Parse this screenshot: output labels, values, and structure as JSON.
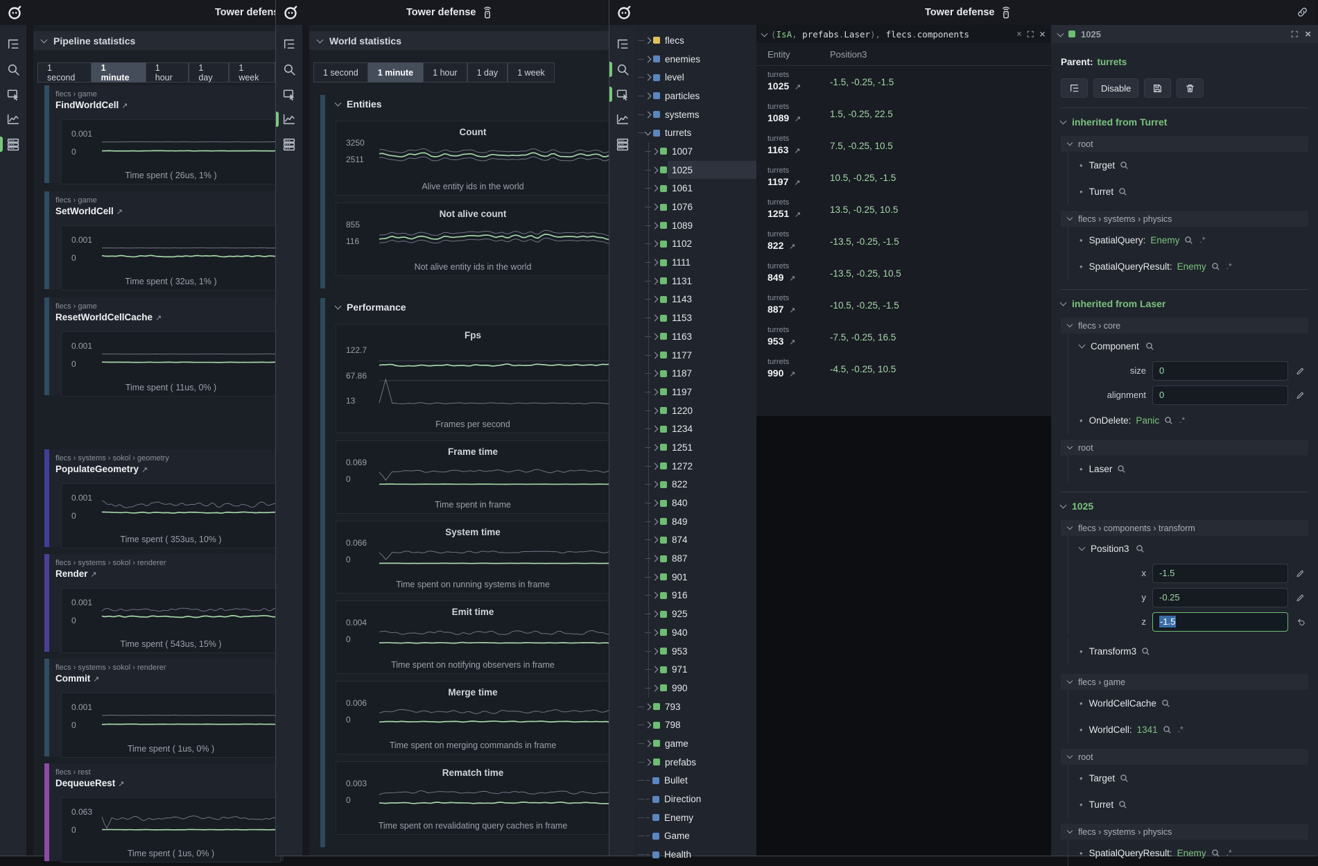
{
  "palette": {
    "green_line": "#a5d6a8",
    "gray_line": "#6f7684",
    "accent_teal": "#2f4d60",
    "accent_indigo": "#3e3f9b",
    "accent_purple": "#4c3f99",
    "accent_magenta": "#8d4aa8",
    "tree_yellow": "#dfc35a",
    "tree_blue": "#5b86c0",
    "tree_green": "#6dbd72"
  },
  "ui": {
    "title": "Tower defense",
    "time_buttons": [
      "1 second",
      "1 minute",
      "1 hour",
      "1 day",
      "1 week"
    ],
    "active_time": "1 minute"
  },
  "left_panel": {
    "title": "Pipeline statistics",
    "cards": [
      {
        "crumb": "flecs > game",
        "name": "FindWorldCell",
        "accent": "#2f4d60",
        "ymax": "0.001",
        "ymin": "0",
        "caption": "Time spent ( 26us, 1% )",
        "series": [
          {
            "c": "gray",
            "b": 0.4,
            "a": 0.004,
            "seed": 1
          },
          {
            "c": "green",
            "b": 0.64,
            "a": 0.006,
            "seed": 2
          }
        ]
      },
      {
        "crumb": "flecs > game",
        "name": "SetWorldCell",
        "accent": "#2f4d60",
        "ymax": "0.001",
        "ymin": "0",
        "caption": "Time spent ( 32us, 1% )",
        "series": [
          {
            "c": "gray",
            "b": 0.4,
            "a": 0.004,
            "seed": 3
          },
          {
            "c": "green",
            "b": 0.62,
            "a": 0.028,
            "seed": 4
          }
        ]
      },
      {
        "crumb": "flecs > game",
        "name": "ResetWorldCellCache",
        "accent": "#2f4d60",
        "ymax": "0.001",
        "ymin": "0",
        "caption": "Time spent ( 11us, 0% )",
        "series": [
          {
            "c": "gray",
            "b": 0.4,
            "a": 0.004,
            "seed": 5
          },
          {
            "c": "green",
            "b": 0.62,
            "a": 0.006,
            "seed": 6
          }
        ]
      },
      {
        "crumb": "flecs > systems > sokol > geometry",
        "name": "PopulateGeometry",
        "accent": "#3e3f9b",
        "ymax": "0.001",
        "ymin": "0",
        "caption": "Time spent ( 353us, 10% )",
        "series": [
          {
            "c": "gray",
            "b": 0.36,
            "a": 0.105,
            "seed": 7
          },
          {
            "c": "green",
            "b": 0.58,
            "a": 0.02,
            "seed": 8
          }
        ]
      },
      {
        "crumb": "flecs > systems > sokol > renderer",
        "name": "Render",
        "accent": "#4c3f99",
        "ymax": "0.001",
        "ymin": "0",
        "caption": "Time spent ( 543us, 15% )",
        "series": [
          {
            "c": "gray",
            "b": 0.38,
            "a": 0.06,
            "seed": 9
          },
          {
            "c": "green",
            "b": 0.56,
            "a": 0.03,
            "seed": 10
          }
        ]
      },
      {
        "crumb": "flecs > systems > sokol > renderer",
        "name": "Commit",
        "accent": "#2f4d60",
        "ymax": "0.001",
        "ymin": "0",
        "caption": "Time spent ( 1us, 0% )",
        "series": [
          {
            "c": "gray",
            "b": 0.4,
            "a": 0.004,
            "seed": 11
          },
          {
            "c": "green",
            "b": 0.64,
            "a": 0.006,
            "seed": 12
          }
        ]
      },
      {
        "crumb": "flecs > rest",
        "name": "DequeueRest",
        "accent": "#8d4aa8",
        "ymax": "0.063",
        "ymin": "0",
        "caption": "Time spent ( 1us, 0% )",
        "series": [
          {
            "c": "gray",
            "b": 0.36,
            "a": 0.075,
            "seed": 13,
            "sp": 0.62
          },
          {
            "c": "green",
            "b": 0.66,
            "a": 0.006,
            "seed": 14
          }
        ]
      }
    ]
  },
  "world_panel": {
    "title": "World statistics",
    "groups": [
      {
        "label": "Entities",
        "cards": [
          {
            "title": "Count",
            "labels": [
              "3250",
              "2511"
            ],
            "caption": "Alive entity ids in the world",
            "h": 106,
            "series": [
              {
                "c": "gray",
                "b": 0.36,
                "a": 0.07,
                "seed": 21
              },
              {
                "c": "gray",
                "b": 0.56,
                "a": 0.07,
                "seed": 21
              },
              {
                "c": "green",
                "b": 0.46,
                "a": 0.07,
                "seed": 21
              }
            ]
          },
          {
            "title": "Not alive count",
            "labels": [
              "855",
              "116"
            ],
            "caption": "Not alive entity ids in the world",
            "h": 104,
            "series": [
              {
                "c": "gray",
                "b": 0.38,
                "a": 0.08,
                "seed": 24
              },
              {
                "c": "gray",
                "b": 0.58,
                "a": 0.08,
                "seed": 24
              },
              {
                "c": "green",
                "b": 0.48,
                "a": 0.08,
                "seed": 24
              }
            ]
          }
        ]
      },
      {
        "label": "Performance",
        "cards": [
          {
            "title": "Fps",
            "labels": [
              "122.7",
              "67.86",
              "13"
            ],
            "caption": "Frames per second",
            "h": 156,
            "grid": [
              0.24,
              0.52
            ],
            "series": [
              {
                "c": "green",
                "b": 0.3,
                "a": 0.022,
                "seed": 31
              },
              {
                "c": "gray",
                "b": 0.84,
                "a": 0.015,
                "seed": 32,
                "sp": 0.5
              }
            ]
          },
          {
            "title": "Frame time",
            "labels": [
              "0.069",
              "0"
            ],
            "caption": "Time spent in frame",
            "h": 104,
            "series": [
              {
                "c": "gray",
                "b": 0.38,
                "a": 0.06,
                "seed": 33,
                "sp": 0.62
              },
              {
                "c": "green",
                "b": 0.72,
                "a": 0.004,
                "seed": 34
              }
            ]
          },
          {
            "title": "System time",
            "labels": [
              "0.066",
              "0"
            ],
            "caption": "Time spent on running systems in frame",
            "h": 103,
            "series": [
              {
                "c": "gray",
                "b": 0.4,
                "a": 0.055,
                "seed": 35,
                "sp": 0.6
              },
              {
                "c": "green",
                "b": 0.7,
                "a": 0.004,
                "seed": 36
              }
            ]
          },
          {
            "title": "Emit time",
            "labels": [
              "0.004",
              "0"
            ],
            "caption": "Time spent on notifying observers in frame",
            "h": 104,
            "series": [
              {
                "c": "gray",
                "b": 0.42,
                "a": 0.085,
                "seed": 37
              },
              {
                "c": "green",
                "b": 0.68,
                "a": 0.015,
                "seed": 38
              }
            ]
          },
          {
            "title": "Merge time",
            "labels": [
              "0.006",
              "0"
            ],
            "caption": "Time spent on merging commands in frame",
            "h": 104,
            "series": [
              {
                "c": "gray",
                "b": 0.38,
                "a": 0.075,
                "seed": 39
              },
              {
                "c": "green",
                "b": 0.64,
                "a": 0.02,
                "seed": 40
              }
            ]
          },
          {
            "title": "Rematch time",
            "labels": [
              "0.003",
              "0"
            ],
            "caption": "Time spent on revalidating query caches in frame",
            "h": 104,
            "series": [
              {
                "c": "gray",
                "b": 0.4,
                "a": 0.065,
                "seed": 41
              },
              {
                "c": "green",
                "b": 0.66,
                "a": 0.025,
                "seed": 42
              }
            ]
          }
        ]
      }
    ]
  },
  "tree": {
    "items": [
      {
        "label": "flecs",
        "color": "yellow",
        "depth": 0,
        "kind": "branch"
      },
      {
        "label": "enemies",
        "color": "blue",
        "depth": 0,
        "kind": "branch"
      },
      {
        "label": "level",
        "color": "blue",
        "depth": 0,
        "kind": "branch"
      },
      {
        "label": "particles",
        "color": "blue",
        "depth": 0,
        "kind": "branch"
      },
      {
        "label": "systems",
        "color": "blue",
        "depth": 0,
        "kind": "branch"
      },
      {
        "label": "turrets",
        "color": "blue",
        "depth": 0,
        "kind": "open"
      },
      {
        "label": "1007",
        "color": "green",
        "depth": 1,
        "kind": "branch"
      },
      {
        "label": "1025",
        "color": "green",
        "depth": 1,
        "kind": "branch",
        "selected": true
      },
      {
        "label": "1061",
        "color": "green",
        "depth": 1,
        "kind": "branch"
      },
      {
        "label": "1076",
        "color": "green",
        "depth": 1,
        "kind": "branch"
      },
      {
        "label": "1089",
        "color": "green",
        "depth": 1,
        "kind": "branch"
      },
      {
        "label": "1102",
        "color": "green",
        "depth": 1,
        "kind": "branch"
      },
      {
        "label": "1111",
        "color": "green",
        "depth": 1,
        "kind": "branch"
      },
      {
        "label": "1131",
        "color": "green",
        "depth": 1,
        "kind": "branch"
      },
      {
        "label": "1143",
        "color": "green",
        "depth": 1,
        "kind": "branch"
      },
      {
        "label": "1153",
        "color": "green",
        "depth": 1,
        "kind": "branch"
      },
      {
        "label": "1163",
        "color": "green",
        "depth": 1,
        "kind": "branch"
      },
      {
        "label": "1177",
        "color": "green",
        "depth": 1,
        "kind": "branch"
      },
      {
        "label": "1187",
        "color": "green",
        "depth": 1,
        "kind": "branch"
      },
      {
        "label": "1197",
        "color": "green",
        "depth": 1,
        "kind": "branch"
      },
      {
        "label": "1220",
        "color": "green",
        "depth": 1,
        "kind": "branch"
      },
      {
        "label": "1234",
        "color": "green",
        "depth": 1,
        "kind": "branch"
      },
      {
        "label": "1251",
        "color": "green",
        "depth": 1,
        "kind": "branch"
      },
      {
        "label": "1272",
        "color": "green",
        "depth": 1,
        "kind": "branch"
      },
      {
        "label": "822",
        "color": "green",
        "depth": 1,
        "kind": "branch"
      },
      {
        "label": "840",
        "color": "green",
        "depth": 1,
        "kind": "branch"
      },
      {
        "label": "849",
        "color": "green",
        "depth": 1,
        "kind": "branch"
      },
      {
        "label": "874",
        "color": "green",
        "depth": 1,
        "kind": "branch"
      },
      {
        "label": "887",
        "color": "green",
        "depth": 1,
        "kind": "branch"
      },
      {
        "label": "901",
        "color": "green",
        "depth": 1,
        "kind": "branch"
      },
      {
        "label": "916",
        "color": "green",
        "depth": 1,
        "kind": "branch"
      },
      {
        "label": "925",
        "color": "green",
        "depth": 1,
        "kind": "branch"
      },
      {
        "label": "940",
        "color": "green",
        "depth": 1,
        "kind": "branch"
      },
      {
        "label": "953",
        "color": "green",
        "depth": 1,
        "kind": "branch"
      },
      {
        "label": "971",
        "color": "green",
        "depth": 1,
        "kind": "branch"
      },
      {
        "label": "990",
        "color": "green",
        "depth": 1,
        "kind": "branch"
      },
      {
        "label": "793",
        "color": "green",
        "depth": 0,
        "kind": "branch"
      },
      {
        "label": "798",
        "color": "green",
        "depth": 0,
        "kind": "branch"
      },
      {
        "label": "game",
        "color": "green",
        "depth": 0,
        "kind": "branch"
      },
      {
        "label": "prefabs",
        "color": "green",
        "depth": 0,
        "kind": "branch"
      },
      {
        "label": "Bullet",
        "color": "blue",
        "depth": 0,
        "kind": "leaf"
      },
      {
        "label": "Direction",
        "color": "blue",
        "depth": 0,
        "kind": "leaf"
      },
      {
        "label": "Enemy",
        "color": "blue",
        "depth": 0,
        "kind": "leaf"
      },
      {
        "label": "Game",
        "color": "blue",
        "depth": 0,
        "kind": "leaf"
      },
      {
        "label": "Health",
        "color": "blue",
        "depth": 0,
        "kind": "leaf"
      }
    ]
  },
  "query": {
    "expr": [
      [
        "(",
        "p"
      ],
      [
        "IsA",
        "g"
      ],
      [
        ", ",
        "p"
      ],
      [
        "prefabs",
        "w"
      ],
      [
        ".",
        "p"
      ],
      [
        "Laser",
        "w"
      ],
      [
        "), ",
        "p"
      ],
      [
        "flecs",
        "w"
      ],
      [
        ".",
        "p"
      ],
      [
        "components",
        "w"
      ]
    ],
    "columns": [
      "Entity",
      "Position3"
    ],
    "rows": [
      {
        "group": "turrets",
        "id": "1025",
        "value": "-1.5, -0.25, -1.5"
      },
      {
        "group": "turrets",
        "id": "1089",
        "value": "1.5, -0.25, 22.5"
      },
      {
        "group": "turrets",
        "id": "1163",
        "value": "7.5, -0.25, 10.5"
      },
      {
        "group": "turrets",
        "id": "1197",
        "value": "10.5, -0.25, -1.5"
      },
      {
        "group": "turrets",
        "id": "1251",
        "value": "13.5, -0.25, 10.5"
      },
      {
        "group": "turrets",
        "id": "822",
        "value": "-13.5, -0.25, -1.5"
      },
      {
        "group": "turrets",
        "id": "849",
        "value": "-13.5, -0.25, 10.5"
      },
      {
        "group": "turrets",
        "id": "887",
        "value": "-10.5, -0.25, -1.5"
      },
      {
        "group": "turrets",
        "id": "953",
        "value": "-7.5, -0.25, 16.5"
      },
      {
        "group": "turrets",
        "id": "990",
        "value": "-4.5, -0.25, 10.5"
      }
    ]
  },
  "inspector": {
    "id": "1025",
    "parent_label": "Parent:",
    "parent": "turrets",
    "disable_label": "Disable",
    "blocks": [
      {
        "t": "green",
        "text": "inherited from Turret"
      },
      {
        "t": "bar",
        "text": "root"
      },
      {
        "t": "item",
        "name": "Target",
        "mag": true
      },
      {
        "t": "item",
        "name": "Turret",
        "mag": true
      },
      {
        "t": "bar",
        "text": "flecs > systems > physics"
      },
      {
        "t": "item",
        "name": "SpatialQuery",
        "value": "Enemy",
        "mag": true,
        "pair": true
      },
      {
        "t": "item",
        "name": "SpatialQueryResult",
        "value": "Enemy",
        "mag": true,
        "pair": true
      },
      {
        "t": "green",
        "text": "inherited from Laser"
      },
      {
        "t": "bar",
        "text": "flecs > core"
      },
      {
        "t": "comp",
        "name": "Component",
        "mag": true
      },
      {
        "t": "field",
        "label": "size",
        "value": "0",
        "icon": "pencil"
      },
      {
        "t": "field",
        "label": "alignment",
        "value": "0",
        "icon": "pencil"
      },
      {
        "t": "item",
        "name": "OnDelete",
        "value": "Panic",
        "mag": true,
        "pair": true
      },
      {
        "t": "bar",
        "text": "root"
      },
      {
        "t": "item",
        "name": "Laser",
        "mag": true
      },
      {
        "t": "green",
        "text": "1025"
      },
      {
        "t": "bar",
        "text": "flecs > components > transform"
      },
      {
        "t": "comp",
        "name": "Position3",
        "mag": true
      },
      {
        "t": "field",
        "label": "x",
        "value": "-1.5",
        "icon": "pencil"
      },
      {
        "t": "field",
        "label": "y",
        "value": "-0.25",
        "icon": "pencil"
      },
      {
        "t": "field",
        "label": "z",
        "value": "-1.5",
        "icon": "undo",
        "focus": true
      },
      {
        "t": "item",
        "name": "Transform3",
        "mag": true,
        "mt": 6
      },
      {
        "t": "bar",
        "text": "flecs > game",
        "mt": 14
      },
      {
        "t": "item",
        "name": "WorldCellCache",
        "mag": true
      },
      {
        "t": "item",
        "name": "WorldCell",
        "value": "1341",
        "mag": true,
        "pair": true
      },
      {
        "t": "bar",
        "text": "root"
      },
      {
        "t": "item",
        "name": "Target",
        "mag": true
      },
      {
        "t": "item",
        "name": "Turret",
        "mag": true
      },
      {
        "t": "bar",
        "text": "flecs > systems > physics"
      },
      {
        "t": "item",
        "name": "SpatialQueryResult",
        "value": "Enemy",
        "mag": true,
        "pair": true
      }
    ]
  }
}
